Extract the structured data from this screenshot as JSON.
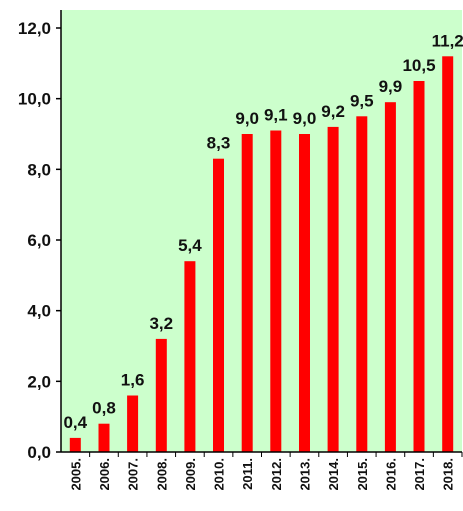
{
  "chart_data": {
    "type": "bar",
    "title": "",
    "xlabel": "",
    "ylabel": "",
    "categories": [
      "2005.",
      "2006.",
      "2007.",
      "2008.",
      "2009.",
      "2010.",
      "2011.",
      "2012.",
      "2013.",
      "2014.",
      "2015.",
      "2016.",
      "2017.",
      "2018."
    ],
    "values": [
      0.4,
      0.8,
      1.6,
      3.2,
      5.4,
      8.3,
      9.0,
      9.1,
      9.0,
      9.2,
      9.5,
      9.9,
      10.5,
      11.2
    ],
    "data_labels": [
      "0,4",
      "0,8",
      "1,6",
      "3,2",
      "5,4",
      "8,3",
      "9,0",
      "9,1",
      "9,0",
      "9,2",
      "9,5",
      "9,9",
      "10,5",
      "11,2"
    ],
    "ylim": [
      0,
      12
    ],
    "yticks": [
      0,
      2,
      4,
      6,
      8,
      10,
      12
    ],
    "ytick_labels": [
      "0,0",
      "2,0",
      "4,0",
      "6,0",
      "8,0",
      "10,0",
      "12,0"
    ],
    "grid": false,
    "legend": "none",
    "colors": {
      "bar": "#ff0000",
      "plot_background": "#ccffcc",
      "axis": "#000000"
    }
  }
}
